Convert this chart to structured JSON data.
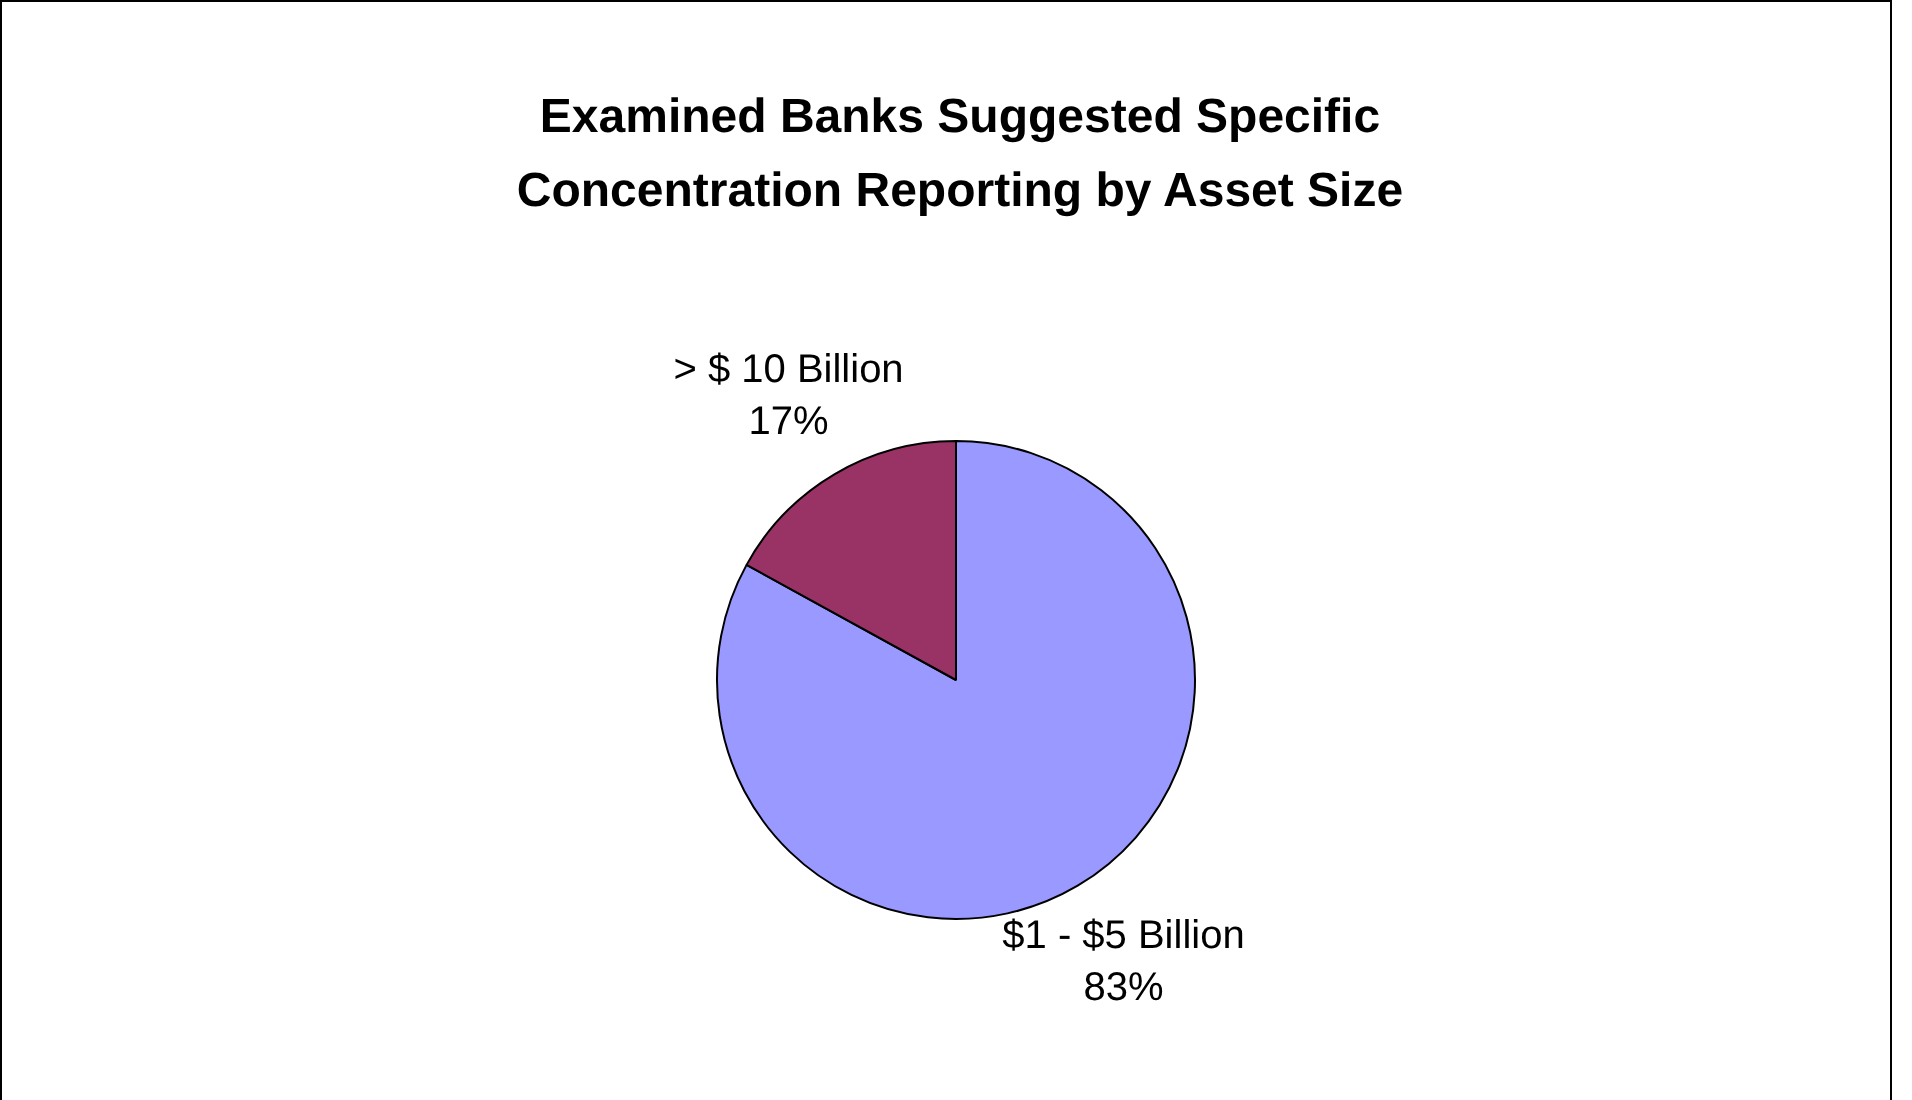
{
  "chart_data": {
    "type": "pie",
    "title": "Examined Banks Suggested Specific Concentration Reporting by Asset Size",
    "categories": [
      "$1 - $5 Billion",
      "> $ 10 Billion"
    ],
    "values": [
      83,
      17
    ],
    "value_labels": [
      "83%",
      "17%"
    ],
    "colors": [
      "#9999ff",
      "#993366"
    ],
    "legend": false
  }
}
